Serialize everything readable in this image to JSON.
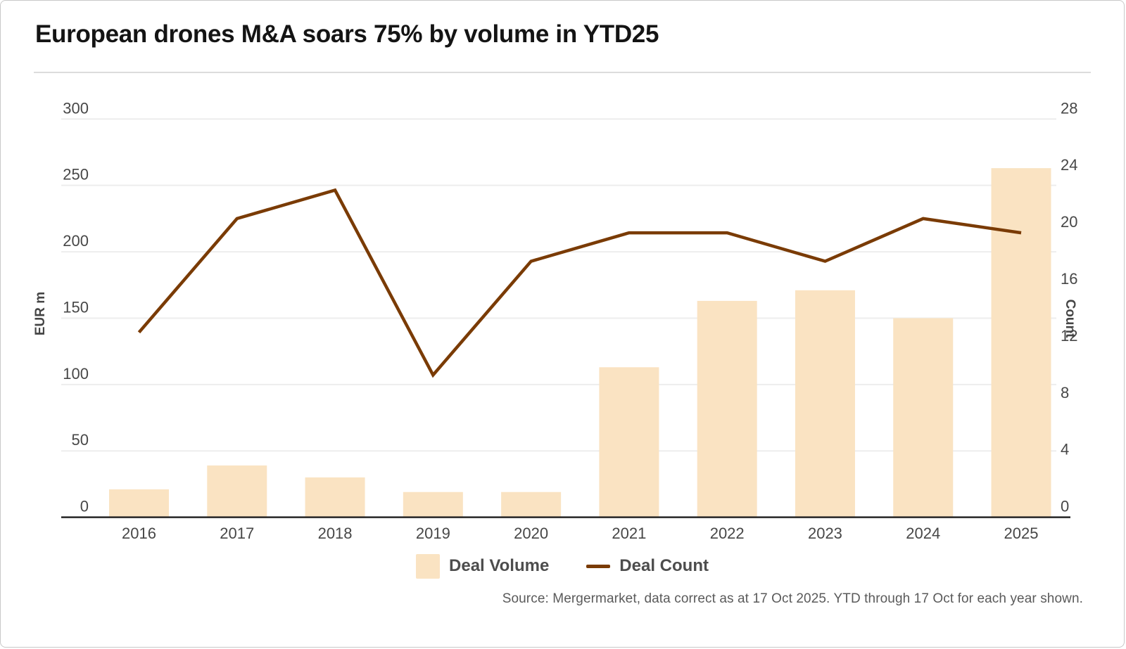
{
  "title": "European drones M&A soars 75% by volume in YTD25",
  "chart_data": {
    "type": "bar",
    "subtype": "combo-bar-line-dual-axis",
    "title": "European drones M&A soars 75% by volume in YTD25",
    "categories": [
      "2016",
      "2017",
      "2018",
      "2019",
      "2020",
      "2021",
      "2022",
      "2023",
      "2024",
      "2025"
    ],
    "series": [
      {
        "name": "Deal Volume",
        "type": "bar",
        "axis": "left",
        "values": [
          21,
          39,
          30,
          19,
          19,
          113,
          163,
          171,
          150,
          263
        ]
      },
      {
        "name": "Deal Count",
        "type": "line",
        "axis": "right",
        "values": [
          13,
          21,
          23,
          10,
          18,
          20,
          20,
          18,
          21,
          20
        ]
      }
    ],
    "xlabel": "",
    "ylabel_left": "EUR m",
    "ylabel_right": "Count",
    "ylim_left": [
      0,
      300
    ],
    "ylim_right": [
      0,
      28
    ],
    "yticks_left": [
      0,
      50,
      100,
      150,
      200,
      250,
      300
    ],
    "yticks_right": [
      0,
      4,
      8,
      12,
      16,
      20,
      24,
      28
    ],
    "grid": "horizontal-left-ticks-only",
    "legend_position": "bottom"
  },
  "legend": {
    "volume_label": "Deal Volume",
    "count_label": "Deal Count"
  },
  "source_note": "Source: Mergermarket, data correct as at 17 Oct 2025. YTD through 17 Oct for each year shown.",
  "colors": {
    "bar_fill": "#fae3c2",
    "line_stroke": "#7a3b05",
    "gridline": "#ededed",
    "axis_line": "#262626",
    "tick_label": "#474747",
    "axis_title": "#454545",
    "legend_text": "#4d4d4d",
    "title_text": "#141414",
    "source_text": "#5a5a5a"
  }
}
